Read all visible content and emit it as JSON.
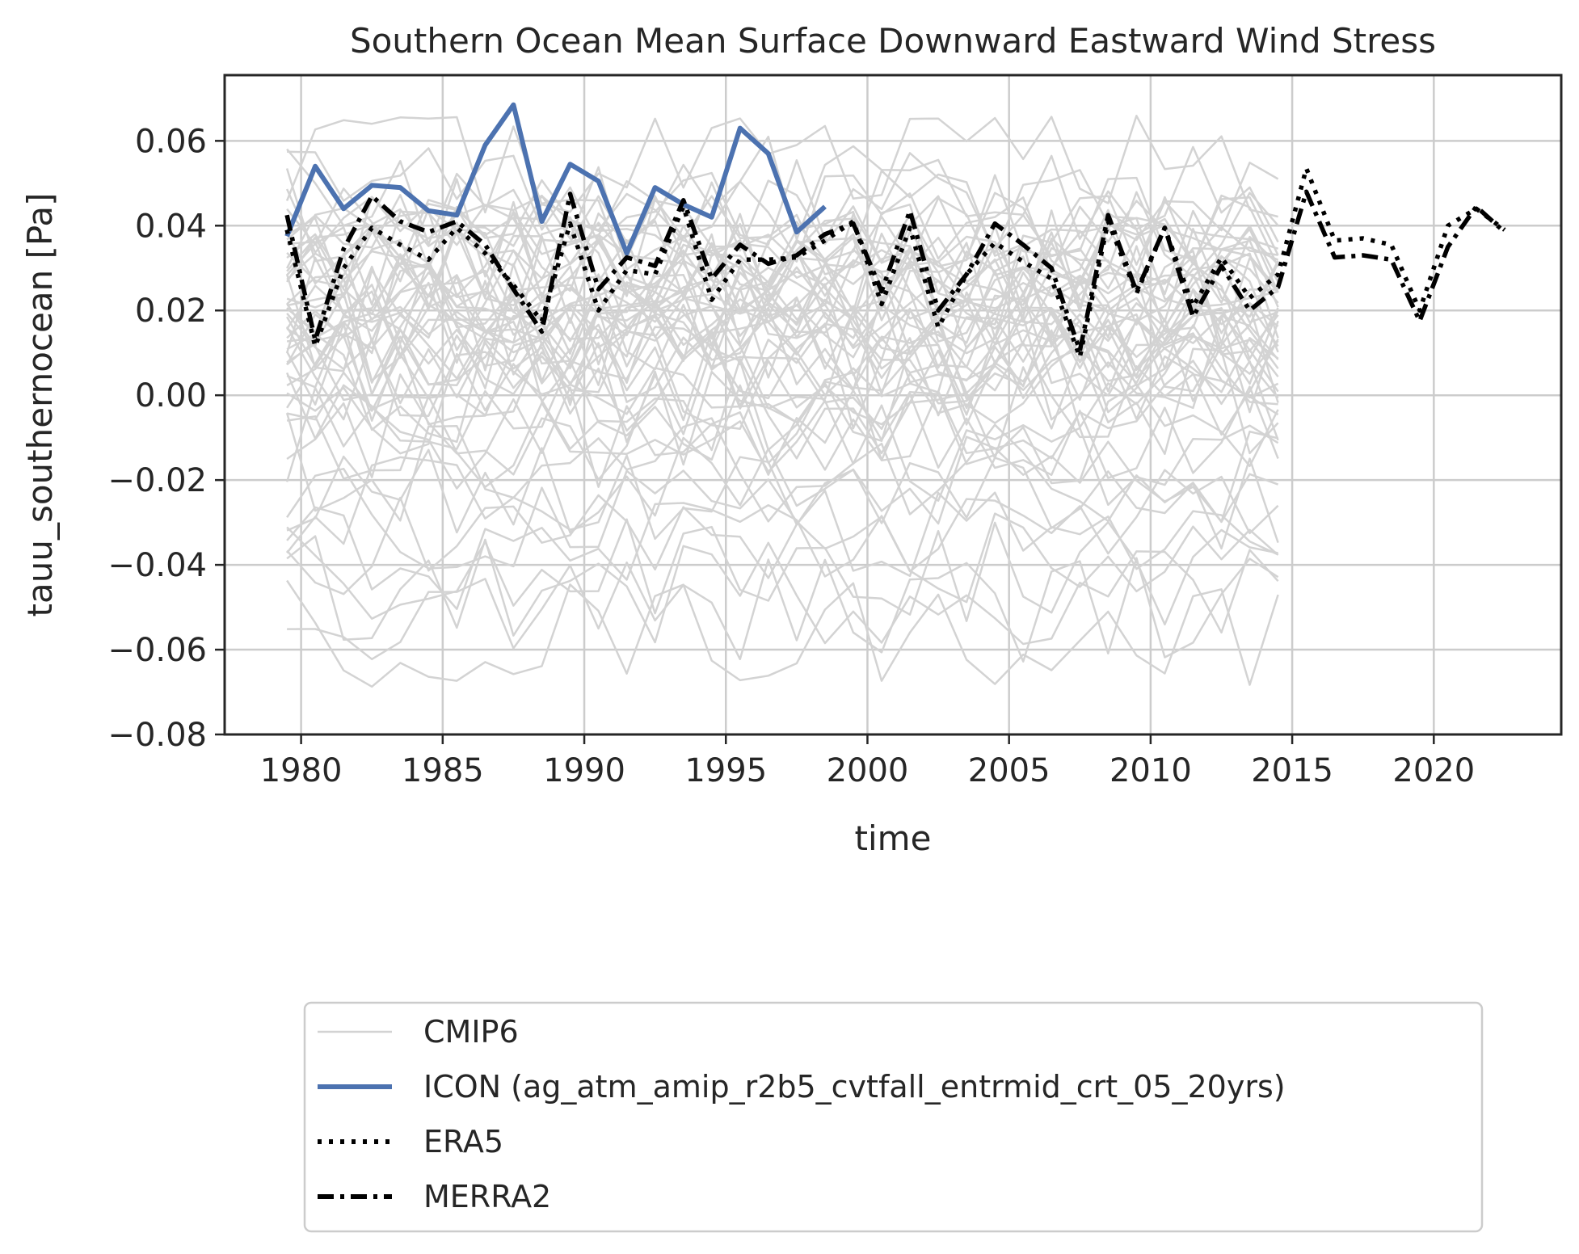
{
  "chart_data": {
    "type": "line",
    "title": "Southern Ocean Mean Surface Downward Eastward Wind Stress",
    "xlabel": "time",
    "ylabel": "tauu_southernocean [Pa]",
    "xlim": [
      1977.3,
      2024.5
    ],
    "ylim": [
      -0.08,
      0.0755
    ],
    "xticks": [
      1980,
      1985,
      1990,
      1995,
      2000,
      2005,
      2010,
      2015,
      2020
    ],
    "yticks": [
      0.06,
      0.04,
      0.02,
      0.0,
      -0.02,
      -0.04,
      -0.06,
      -0.08
    ],
    "ytick_labels": [
      "0.06",
      "0.04",
      "0.02",
      "0.00",
      "−0.02",
      "−0.04",
      "−0.06",
      "−0.08"
    ],
    "grid": true,
    "legend": {
      "placement": "below",
      "entries": [
        {
          "label": "CMIP6",
          "color": "#d3d3d3",
          "style": "solid"
        },
        {
          "label": "ICON (ag_atm_amip_r2b5_cvtfall_entrmid_crt_05_20yrs)",
          "color": "#4c72b0",
          "style": "solid"
        },
        {
          "label": "ERA5",
          "color": "#000000",
          "style": "dotted"
        },
        {
          "label": "MERRA2",
          "color": "#000000",
          "style": "dashdot"
        }
      ]
    },
    "cmip6": {
      "color": "#d3d3d3",
      "x_start": 1979.5,
      "x_end": 2014.5,
      "n_members": 56,
      "ensemble_means": [
        0.055,
        0.048,
        0.046,
        0.043,
        0.041,
        0.039,
        0.038,
        0.036,
        0.035,
        0.034,
        0.033,
        0.032,
        0.031,
        0.03,
        0.029,
        0.028,
        0.027,
        0.026,
        0.025,
        0.024,
        0.023,
        0.022,
        0.021,
        0.02,
        0.019,
        0.018,
        0.017,
        0.016,
        0.015,
        0.014,
        0.013,
        0.012,
        0.011,
        0.01,
        0.009,
        0.008,
        0.006,
        0.005,
        0.004,
        0.002,
        0.0,
        -0.002,
        -0.004,
        -0.007,
        -0.01,
        -0.013,
        -0.017,
        -0.021,
        -0.026,
        -0.03,
        -0.034,
        -0.038,
        -0.042,
        -0.046,
        -0.05,
        -0.056
      ]
    },
    "series": [
      {
        "name": "ICON (ag_atm_amip_r2b5_cvtfall_entrmid_crt_05_20yrs)",
        "color": "#4c72b0",
        "style": "solid",
        "x": [
          1979.5,
          1980.5,
          1981.5,
          1982.5,
          1983.5,
          1984.5,
          1985.5,
          1986.5,
          1987.5,
          1988.5,
          1989.5,
          1990.5,
          1991.5,
          1992.5,
          1993.5,
          1994.5,
          1995.5,
          1996.5,
          1997.5,
          1998.5
        ],
        "values": [
          0.0375,
          0.054,
          0.044,
          0.0495,
          0.049,
          0.0435,
          0.0425,
          0.059,
          0.0685,
          0.041,
          0.0545,
          0.0505,
          0.0335,
          0.049,
          0.045,
          0.042,
          0.063,
          0.057,
          0.0385,
          0.0445
        ]
      },
      {
        "name": "ERA5",
        "color": "#000000",
        "style": "dotted",
        "x": [
          1979.5,
          1980.5,
          1981.5,
          1982.5,
          1983.5,
          1984.5,
          1985.5,
          1986.5,
          1987.5,
          1988.5,
          1989.5,
          1990.5,
          1991.5,
          1992.5,
          1993.5,
          1994.5,
          1995.5,
          1996.5,
          1997.5,
          1998.5,
          1999.5,
          2000.5,
          2001.5,
          2002.5,
          2003.5,
          2004.5,
          2005.5,
          2006.5,
          2007.5,
          2008.5,
          2009.5,
          2010.5,
          2011.5,
          2012.5,
          2013.5,
          2014.5,
          2015.5,
          2016.5,
          2017.5,
          2018.5,
          2019.5,
          2020.5,
          2021.5,
          2022.5
        ],
        "values": [
          0.039,
          0.0115,
          0.03,
          0.0395,
          0.0355,
          0.032,
          0.0395,
          0.0335,
          0.026,
          0.0175,
          0.0405,
          0.02,
          0.0295,
          0.0285,
          0.0445,
          0.0225,
          0.032,
          0.032,
          0.0325,
          0.0365,
          0.041,
          0.0215,
          0.0395,
          0.016,
          0.0285,
          0.036,
          0.0315,
          0.0275,
          0.009,
          0.041,
          0.024,
          0.0395,
          0.021,
          0.0325,
          0.023,
          0.0285,
          0.0535,
          0.0365,
          0.037,
          0.0355,
          0.02,
          0.04,
          0.044,
          0.039
        ]
      },
      {
        "name": "MERRA2",
        "color": "#000000",
        "style": "dashdot",
        "x": [
          1979.5,
          1980.5,
          1981.5,
          1982.5,
          1983.5,
          1984.5,
          1985.5,
          1986.5,
          1987.5,
          1988.5,
          1989.5,
          1990.5,
          1991.5,
          1992.5,
          1993.5,
          1994.5,
          1995.5,
          1996.5,
          1997.5,
          1998.5,
          1999.5,
          2000.5,
          2001.5,
          2002.5,
          2003.5,
          2004.5,
          2005.5,
          2006.5,
          2007.5,
          2008.5,
          2009.5,
          2010.5,
          2011.5,
          2012.5,
          2013.5,
          2014.5,
          2015.5,
          2016.5,
          2017.5,
          2018.5,
          2019.5,
          2020.5,
          2021.5,
          2022.5
        ],
        "values": [
          0.0425,
          0.013,
          0.0345,
          0.047,
          0.041,
          0.0385,
          0.041,
          0.0355,
          0.025,
          0.015,
          0.0475,
          0.025,
          0.0325,
          0.0305,
          0.046,
          0.0275,
          0.0355,
          0.031,
          0.033,
          0.038,
          0.0405,
          0.0245,
          0.0435,
          0.02,
          0.0285,
          0.0405,
          0.0355,
          0.03,
          0.0105,
          0.0425,
          0.0245,
          0.0395,
          0.0185,
          0.0305,
          0.02,
          0.0255,
          0.048,
          0.0325,
          0.033,
          0.032,
          0.0175,
          0.035,
          0.0445,
          0.0385
        ]
      }
    ]
  }
}
